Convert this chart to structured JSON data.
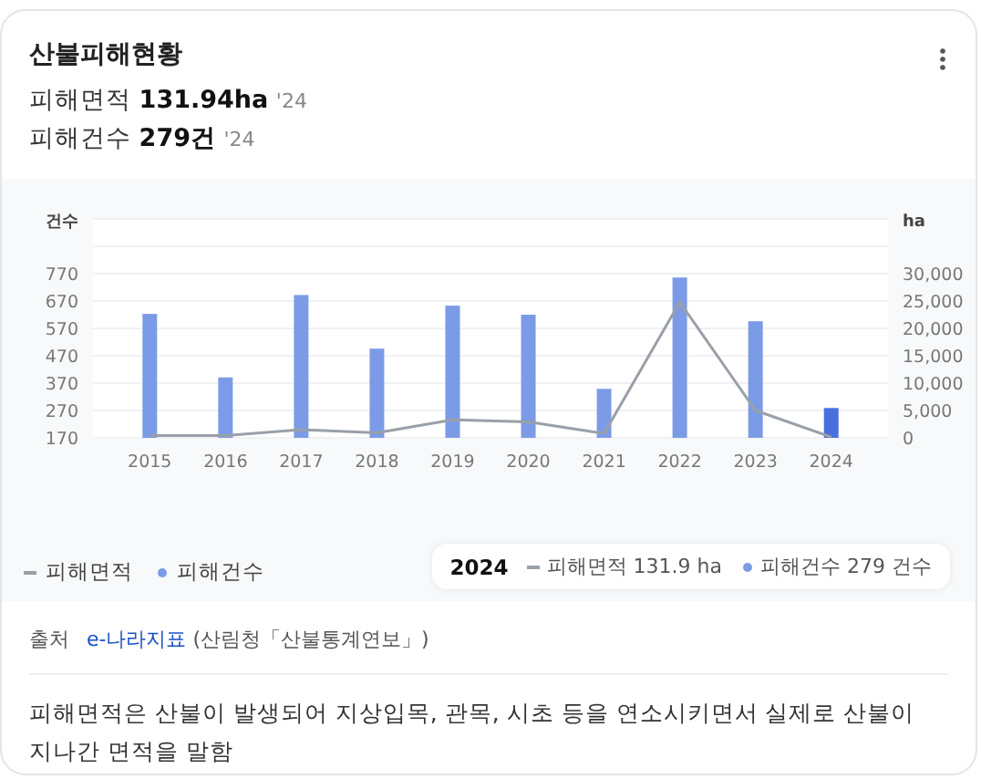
{
  "chart_data": {
    "type": "bar",
    "title": "산불피해현황",
    "ylabel": "건수",
    "y2label": "ha",
    "categories": [
      "2015",
      "2016",
      "2017",
      "2018",
      "2019",
      "2020",
      "2021",
      "2022",
      "2023",
      "2024"
    ],
    "series": [
      {
        "name": "피해면적",
        "type": "line",
        "axis": "y2",
        "color": "#9aa0a8",
        "values": [
          400,
          400,
          1500,
          900,
          3300,
          2900,
          800,
          24800,
          5000,
          131.9
        ]
      },
      {
        "name": "피해건수",
        "color": "#7b9be6",
        "colors": [
          "#7b9be6",
          "#7b9be6",
          "#7b9be6",
          "#7b9be6",
          "#7b9be6",
          "#7b9be6",
          "#7b9be6",
          "#7b9be6",
          "#7b9be6",
          "#4a6fdc"
        ],
        "values": [
          623,
          391,
          692,
          496,
          653,
          620,
          349,
          756,
          596,
          279
        ]
      }
    ],
    "ylim": [
      170,
      970
    ],
    "yticks": [
      170,
      270,
      370,
      470,
      570,
      670,
      770,
      {
        "value": 870,
        "label": null
      },
      {
        "value": 970,
        "label": null
      }
    ],
    "y2lim": [
      0,
      40000
    ],
    "y2ticks": [
      0,
      {
        "value": 5000,
        "label": "5,000"
      },
      {
        "value": 10000,
        "label": "10,000"
      },
      {
        "value": 15000,
        "label": "15,000"
      },
      {
        "value": 20000,
        "label": "20,000"
      },
      {
        "value": 25000,
        "label": "25,000"
      },
      {
        "value": 30000,
        "label": "30,000"
      },
      {
        "value": 35000,
        "label": null
      },
      {
        "value": 40000,
        "label": null
      }
    ],
    "grid": "y",
    "legend": "bottom left",
    "marker": "none",
    "line_style": "solid",
    "annotations": [
      "피해면적 131.94ha '24",
      "피해건수 279건 '24",
      "2024",
      "피해면적 131.9 ha",
      "피해건수 279 건수",
      "출처 e-나라지표 (산림청「산불통계연보」)",
      "피해면적은 산불이 발생되어 지상입목, 관목, 시초 등을 연소시키면서 실제로 산불이 지나간 면적을 말함"
    ]
  }
}
